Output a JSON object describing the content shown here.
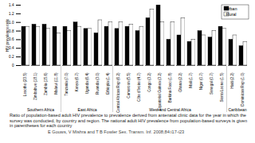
{
  "chart_data": {
    "type": "bar",
    "y_label": "HIV prevalence ratio",
    "categories": [
      "Lesotho (23.5)",
      "Zimbabwe (18.1)",
      "Zambia (15.6)",
      "Malawi (11.8)",
      "Tanzania (7.0)",
      "Kenya (6.7)",
      "Uganda (6.4)",
      "Rwanda (3.0)",
      "Ethiopia (1.4)",
      "Central African Rep (6.2)",
      "Cameroon (5.5)",
      "Côte d'Ivoire (4.7)",
      "Congo (3.2)",
      "Equatorial Guinea (3.2)",
      "Burkina Faso (1.8)",
      "Ghana (2.2)",
      "Mali (1.7)",
      "Niger (0.7)",
      "Senegal (0.7)",
      "Sierra Leone (1.5)",
      "Haiti (2.2)",
      "Dominican Rep (1.0)"
    ],
    "regions": [
      "Southern Africa",
      "Southern Africa",
      "Southern Africa",
      "Southern Africa",
      "East Africa",
      "East Africa",
      "East Africa",
      "East Africa",
      "East Africa",
      "West and Central Africa",
      "West and Central Africa",
      "West and Central Africa",
      "West and Central Africa",
      "West and Central Africa",
      "West and Central Africa",
      "West and Central Africa",
      "West and Central Africa",
      "West and Central Africa",
      "West and Central Africa",
      "West and Central Africa",
      "Caribbean",
      "Caribbean"
    ],
    "series": [
      {
        "name": "Urban",
        "color": "#000000",
        "values": [
          0.9,
          0.95,
          0.95,
          0.9,
          0.9,
          1.0,
          0.85,
          0.75,
          0.9,
          0.85,
          0.9,
          0.8,
          1.1,
          1.4,
          0.6,
          0.7,
          0.55,
          0.8,
          0.65,
          0.9,
          0.6,
          0.45
        ]
      },
      {
        "name": "Rural",
        "color": "#ffffff",
        "values": [
          0.9,
          0.9,
          0.85,
          0.75,
          0.8,
          0.9,
          0.85,
          1.05,
          1.0,
          1.0,
          0.95,
          0.9,
          1.3,
          1.0,
          1.0,
          1.1,
          0.6,
          0.7,
          0.8,
          0.85,
          0.7,
          0.55
        ]
      }
    ],
    "ylim": [
      0,
      1.4
    ],
    "yticks": [
      0,
      0.2,
      0.4,
      0.6,
      0.8,
      {
        "value": 1,
        "label": "1.0"
      },
      1.2,
      1.4
    ],
    "legend": "top-right",
    "caption": "Ratio of population-based adult HIV prevalence to prevalence derived from antenatal clinic data for the year in which the survey was conducted, by country and region. The national adult HIV prevalence from population-based surveys is given in parentheses for each country",
    "source": "E Gouws, V Mishra and T B Fowler    Sex. Transm. Inf. 2008;84:i17-i23"
  }
}
